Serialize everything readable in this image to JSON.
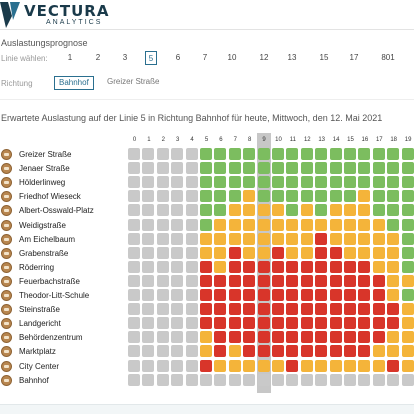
{
  "header": {
    "logo_text": "VECTURA",
    "logo_sub": "ANALYTICS"
  },
  "forecast": {
    "section_title": "Auslastungsprognose",
    "line_label": "Linie wählen:",
    "lines": [
      "1",
      "2",
      "3",
      "5",
      "6",
      "7",
      "10",
      "12",
      "13",
      "15",
      "17",
      "801"
    ],
    "active_line": "5",
    "direction_label": "Richtung",
    "directions": [
      "Bahnhof",
      "Greizer Straße"
    ],
    "active_direction": "Bahnhof",
    "subtitle": "Erwartete Auslastung auf der Linie 5 in Richtung Bahnhof für heute, Mittwoch, den 12. Mai 2021"
  },
  "colors": {
    "empty": "#c9c9c9",
    "low": "#7cbd5f",
    "medium": "#f4b43a",
    "high": "#d8352a",
    "highlight": "#c7c7c7"
  },
  "hours": [
    "0",
    "1",
    "2",
    "3",
    "4",
    "5",
    "6",
    "7",
    "8",
    "9",
    "10",
    "11",
    "12",
    "13",
    "14",
    "15",
    "16",
    "17",
    "18",
    "19"
  ],
  "highlight_hour": "9",
  "stops": [
    {
      "name": "Greizer Straße",
      "levels": "00000111111111111111"
    },
    {
      "name": "Jenaer Straße",
      "levels": "00000111111111111111"
    },
    {
      "name": "Hölderlinweg",
      "levels": "00000111111111111111"
    },
    {
      "name": "Friedhof Wieseck",
      "levels": "00000111211111112111"
    },
    {
      "name": "Albert-Osswald-Platz",
      "levels": "00000112222121222111"
    },
    {
      "name": "Weidigstraße",
      "levels": "00000122222222222211"
    },
    {
      "name": "Am Eichelbaum",
      "levels": "00000222222223222221"
    },
    {
      "name": "Grabenstraße",
      "levels": "00000223223223322221"
    },
    {
      "name": "Röderring",
      "levels": "00000323333333333221"
    },
    {
      "name": "Feuerbachstraße",
      "levels": "00000333333333333322"
    },
    {
      "name": "Theodor-Litt-Schule",
      "levels": "00000333333333333321"
    },
    {
      "name": "Steinstraße",
      "levels": "00000333333333333332"
    },
    {
      "name": "Landgericht",
      "levels": "00000333333333333332"
    },
    {
      "name": "Behördenzentrum",
      "levels": "00000233333333333322"
    },
    {
      "name": "Marktplatz",
      "levels": "00000232333333333222"
    },
    {
      "name": "City Center",
      "levels": "00000322222322222232"
    },
    {
      "name": "Bahnhof",
      "levels": "00000000000000000000"
    }
  ]
}
